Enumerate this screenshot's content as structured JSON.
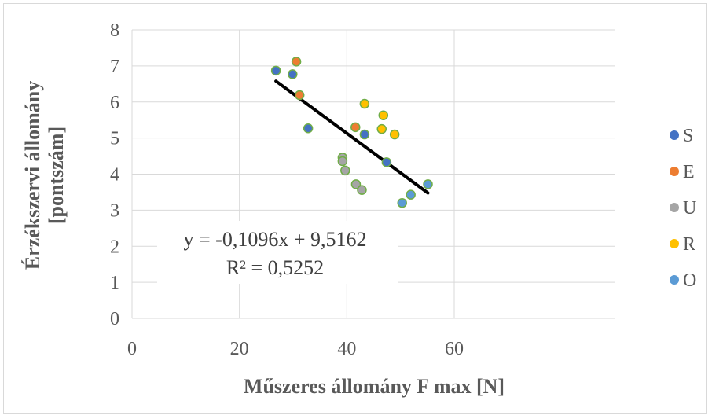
{
  "colors": {
    "S": "#4472c4",
    "E": "#ed7d31",
    "U": "#a5a5a5",
    "R": "#ffc000",
    "O": "#5b9bd5",
    "marker_edge": "#70ad47",
    "trendline": "#000000",
    "gridline": "#d9d9d9"
  },
  "chart_data": {
    "type": "scatter",
    "title": "",
    "xlabel": "Műszeres állomány  F max [N]",
    "ylabel": "Érzékszervi állomány [pontszám]",
    "xlim": [
      0,
      60
    ],
    "ylim": [
      0,
      8
    ],
    "x_ticks": [
      "0",
      "20",
      "40",
      "60"
    ],
    "y_ticks": [
      "0",
      "1",
      "2",
      "3",
      "4",
      "5",
      "6",
      "7",
      "8"
    ],
    "grid": "major vertical and horizontal",
    "legend": "right",
    "series": [
      {
        "name": "S",
        "points": [
          [
            26.8,
            6.87
          ],
          [
            29.9,
            6.77
          ],
          [
            32.8,
            5.27
          ],
          [
            43.3,
            5.1
          ],
          [
            47.4,
            4.33
          ]
        ]
      },
      {
        "name": "E",
        "points": [
          [
            30.6,
            7.12
          ],
          [
            31.2,
            6.19
          ],
          [
            41.6,
            5.3
          ]
        ]
      },
      {
        "name": "U",
        "points": [
          [
            39.2,
            4.46
          ],
          [
            39.2,
            4.36
          ],
          [
            39.7,
            4.1
          ],
          [
            41.7,
            3.72
          ],
          [
            42.8,
            3.56
          ]
        ]
      },
      {
        "name": "R",
        "points": [
          [
            43.3,
            5.95
          ],
          [
            46.5,
            5.25
          ],
          [
            46.8,
            5.63
          ],
          [
            48.9,
            5.1
          ]
        ]
      },
      {
        "name": "O",
        "points": [
          [
            50.3,
            3.2
          ],
          [
            51.9,
            3.43
          ],
          [
            55.1,
            3.72
          ]
        ]
      }
    ],
    "trendline": {
      "slope": -0.1096,
      "intercept": 9.5162,
      "x_range": [
        26.8,
        55.1
      ],
      "equation_label": "y = -0,1096x + 9,5162",
      "r2_label": "R² = 0,5252"
    }
  }
}
